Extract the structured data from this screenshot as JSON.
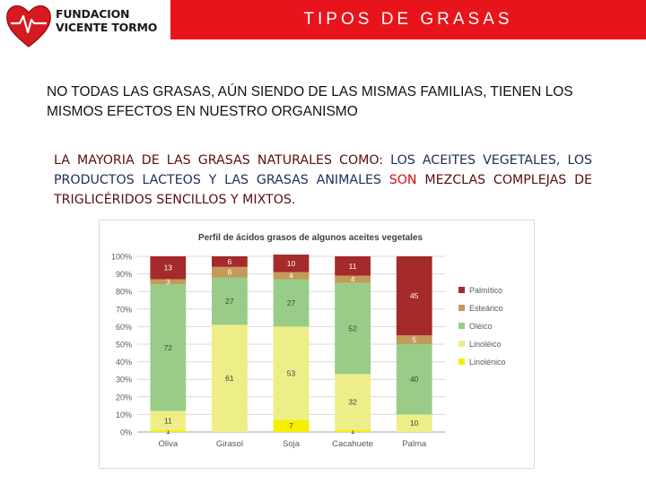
{
  "header": {
    "title": "TIPOS DE GRASAS",
    "bar_color": "#e8141b",
    "logo_line1": "FUNDACION",
    "logo_line2": "VICENTE TORMO"
  },
  "intro": "NO TODAS LAS GRASAS, AÚN SIENDO DE LAS MISMAS FAMILIAS, TIENEN LOS MISMOS EFECTOS EN NUESTRO ORGANISMO",
  "callout": {
    "part1": "LA MAYORIA DE LAS GRASAS NATURALES COMO",
    "part2": ": LOS ACEITES VEGETALES, LOS PRODUCTOS LACTEOS Y LAS GRASAS ANIMALES ",
    "part3": "SON",
    "part4": " MEZCLAS COMPLEJAS DE TRIGLICÉRIDOS SENCILLOS Y MIXTOS."
  },
  "chart_data": {
    "type": "bar",
    "stacked": true,
    "title": "Perfil de ácidos grasos de algunos aceites vegetales",
    "categories": [
      "Oliva",
      "Girasol",
      "Soja",
      "Cacahuete",
      "Palma"
    ],
    "ylim": [
      0,
      100
    ],
    "yticks": [
      "0%",
      "10%",
      "20%",
      "30%",
      "40%",
      "50%",
      "60%",
      "70%",
      "80%",
      "90%",
      "100%"
    ],
    "grid": true,
    "legend_position": "right",
    "series": [
      {
        "name": "Linolénico",
        "color": "#f5f000",
        "values": [
          1,
          0,
          7,
          1,
          0
        ]
      },
      {
        "name": "Linoléico",
        "color": "#eeee88",
        "values": [
          11,
          61,
          53,
          32,
          10
        ]
      },
      {
        "name": "Oléico",
        "color": "#99cc88",
        "values": [
          72,
          27,
          27,
          52,
          40
        ]
      },
      {
        "name": "Esteárico",
        "color": "#c49a5a",
        "values": [
          3,
          6,
          4,
          4,
          5
        ]
      },
      {
        "name": "Palmítico",
        "color": "#a52a2a",
        "values": [
          13,
          6,
          10,
          11,
          45
        ]
      }
    ],
    "legend_order": [
      "Palmítico",
      "Esteárico",
      "Oléico",
      "Linoléico",
      "Linolénico"
    ]
  }
}
